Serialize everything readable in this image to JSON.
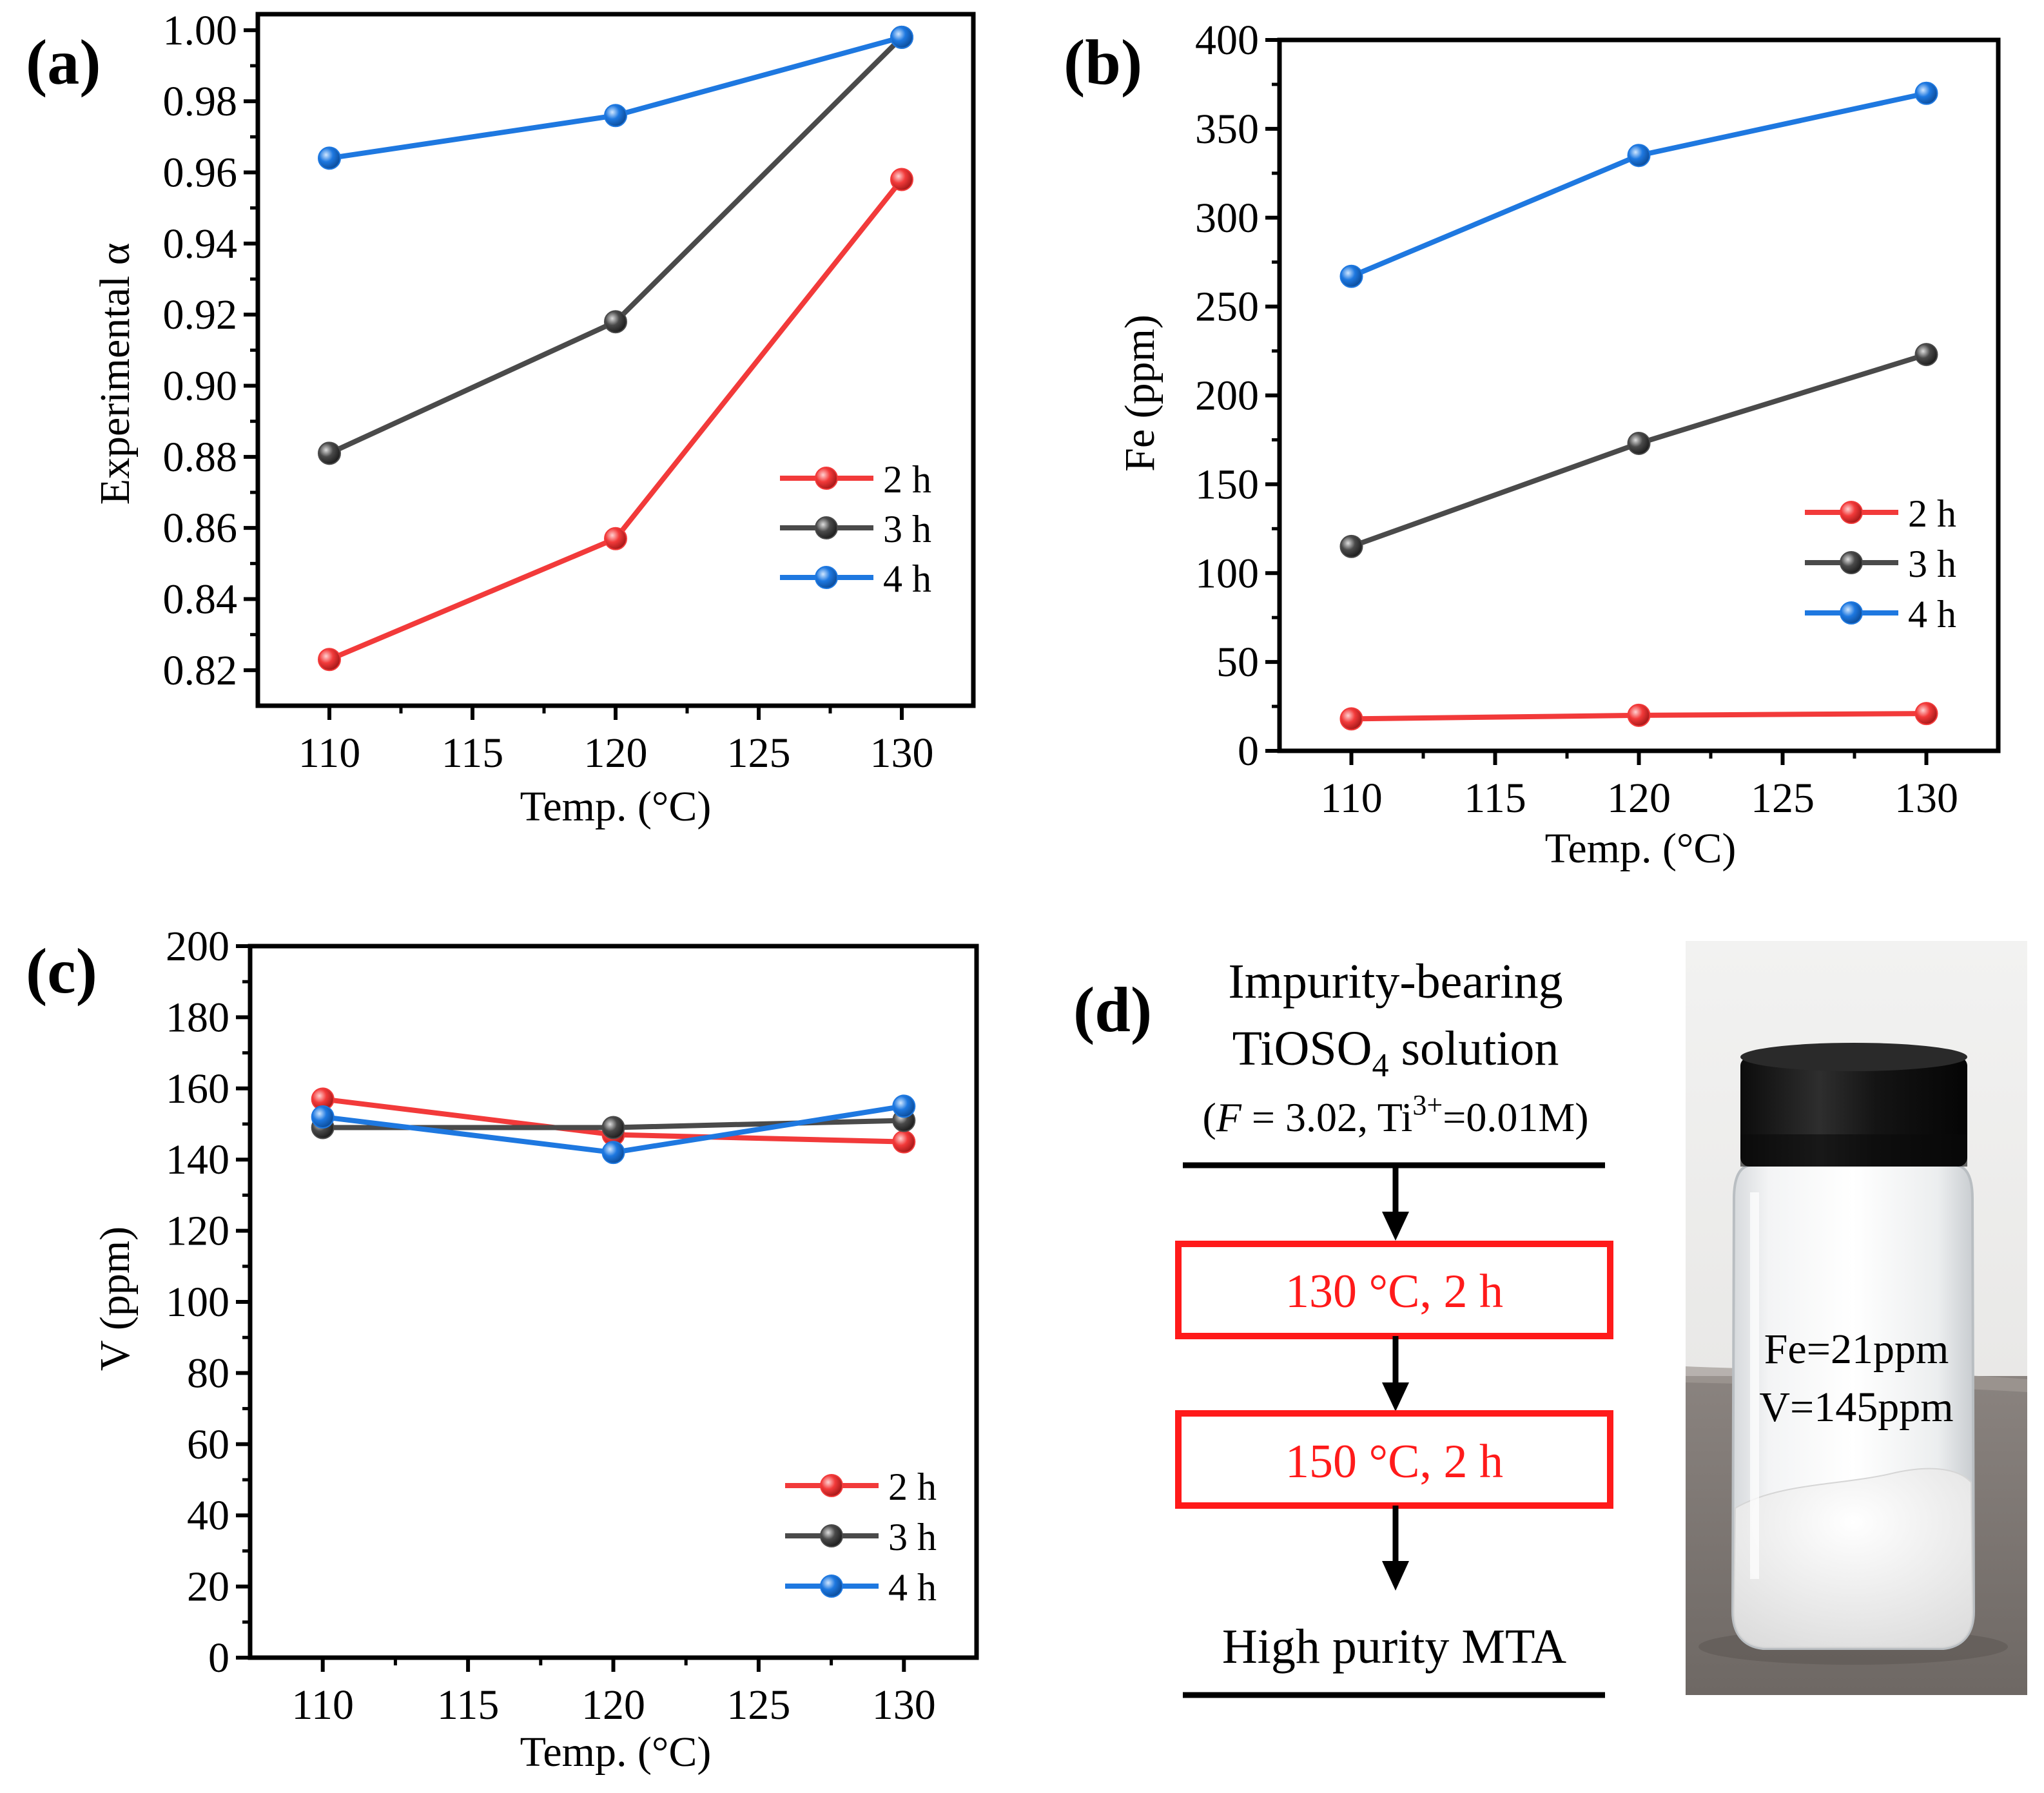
{
  "colors": {
    "2h": "#f23a3a",
    "3h": "#4a4a4a",
    "4h": "#1e78e0",
    "flow_box": "#ff1a1a",
    "photo_bg": "#c9c7c4",
    "table": "#7b7571"
  },
  "chart_data": [
    {
      "panel_label": "(a)",
      "type": "line",
      "title": "",
      "xlabel": "Temp. (°C)",
      "ylabel": "Experimental α",
      "x": [
        110,
        120,
        130
      ],
      "xlim": [
        107.5,
        132.5
      ],
      "xticks": [
        "110",
        "115",
        "120",
        "125",
        "130"
      ],
      "ylim": [
        0.81,
        1.0045
      ],
      "yticks": [
        "0.82",
        "0.84",
        "0.86",
        "0.88",
        "0.90",
        "0.92",
        "0.94",
        "0.96",
        "0.98",
        "1.00"
      ],
      "series": [
        {
          "name": "2 h",
          "key": "2h",
          "values": [
            0.823,
            0.857,
            0.958
          ]
        },
        {
          "name": "3 h",
          "key": "3h",
          "values": [
            0.881,
            0.918,
            0.998
          ]
        },
        {
          "name": "4 h",
          "key": "4h",
          "values": [
            0.964,
            0.976,
            0.998
          ]
        }
      ],
      "legend": "lower-right"
    },
    {
      "panel_label": "(b)",
      "type": "line",
      "title": "",
      "xlabel": "Temp. (°C)",
      "ylabel": "Fe (ppm)",
      "x": [
        110,
        120,
        130
      ],
      "xlim": [
        107.5,
        132.5
      ],
      "xticks": [
        "110",
        "115",
        "120",
        "125",
        "130"
      ],
      "ylim": [
        0,
        400
      ],
      "yticks": [
        "0",
        "50",
        "100",
        "150",
        "200",
        "250",
        "300",
        "350",
        "400"
      ],
      "series": [
        {
          "name": "2 h",
          "key": "2h",
          "values": [
            18,
            20,
            21
          ]
        },
        {
          "name": "3 h",
          "key": "3h",
          "values": [
            115,
            173,
            223
          ]
        },
        {
          "name": "4 h",
          "key": "4h",
          "values": [
            267,
            335,
            370
          ]
        }
      ],
      "legend": "lower-right"
    },
    {
      "panel_label": "(c)",
      "type": "line",
      "title": "",
      "xlabel": "Temp. (°C)",
      "ylabel": "V (ppm)",
      "x": [
        110,
        120,
        130
      ],
      "xlim": [
        107.5,
        132.5
      ],
      "xticks": [
        "110",
        "115",
        "120",
        "125",
        "130"
      ],
      "ylim": [
        0,
        200
      ],
      "yticks": [
        "0",
        "20",
        "40",
        "60",
        "80",
        "100",
        "120",
        "140",
        "160",
        "180",
        "200"
      ],
      "series": [
        {
          "name": "2 h",
          "key": "2h",
          "values": [
            157,
            147,
            145
          ]
        },
        {
          "name": "3 h",
          "key": "3h",
          "values": [
            149,
            149,
            151
          ]
        },
        {
          "name": "4 h",
          "key": "4h",
          "values": [
            152,
            142,
            155
          ]
        }
      ],
      "legend": "lower-right"
    }
  ],
  "panel_d": {
    "label": "(d)",
    "title_line1": "Impurity-bearing",
    "title_line2_main": "TiOSO",
    "title_line2_sub": "4",
    "title_line2_rest": " solution",
    "cond_open": "(",
    "cond_f": "F",
    "cond_mid": " = 3.02, Ti",
    "cond_sup": "3+",
    "cond_close": "=0.01M)",
    "step1": "130 °C, 2 h",
    "step2": "150 °C, 2 h",
    "product": "High purity MTA",
    "photo_fe": "Fe=21ppm",
    "photo_v": "V=145ppm"
  }
}
